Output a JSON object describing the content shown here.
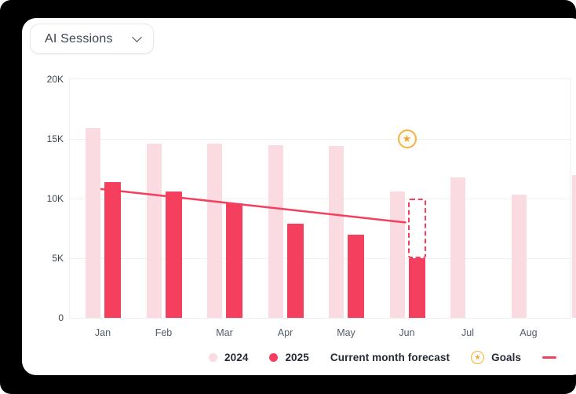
{
  "card": {
    "dropdown": {
      "label": "AI Sessions"
    }
  },
  "chart_data": {
    "type": "bar",
    "title": "AI Sessions",
    "categories": [
      "Jan",
      "Feb",
      "Mar",
      "Apr",
      "May",
      "Jun",
      "Jul",
      "Aug",
      ""
    ],
    "series": [
      {
        "name": "2024",
        "color": "#fadbe1",
        "values": [
          15900,
          14600,
          14600,
          14500,
          14400,
          10600,
          11800,
          10300,
          12000
        ]
      },
      {
        "name": "2025",
        "color": "#f43f5e",
        "values": [
          11400,
          10600,
          9600,
          7900,
          7000,
          5000,
          null,
          null,
          null
        ]
      }
    ],
    "forecast": {
      "category": "Jun",
      "from": 5000,
      "to": 10000,
      "style": "dashed",
      "color": "#f43f5e"
    },
    "trend_line": {
      "from_category": "Jan",
      "from_value": 10800,
      "to_category": "Jun",
      "to_value": 8000,
      "color": "#f43f5e"
    },
    "goal": {
      "category": "Jun",
      "value": 15000,
      "icon": "star",
      "color": "#f2a42e"
    },
    "y_ticks": [
      "0",
      "5K",
      "10K",
      "15K",
      "20K"
    ],
    "ylim": [
      0,
      20000
    ],
    "grid": "horizontal",
    "legend_position": "bottom"
  },
  "legend": {
    "items": [
      {
        "label": "2024",
        "swatch": "dot",
        "color": "#fadbe1"
      },
      {
        "label": "2025",
        "swatch": "dot",
        "color": "#f43f5e"
      },
      {
        "label": "Current month forecast",
        "swatch": "none",
        "color": ""
      },
      {
        "label": "Goals",
        "swatch": "star",
        "color": "#f2a42e"
      },
      {
        "label": "",
        "swatch": "line",
        "color": "#f43f5e"
      }
    ]
  },
  "colors": {
    "backdrop": "#000000",
    "card": "#ffffff",
    "bar_2024": "#fadbe1",
    "bar_2025": "#f43f5e",
    "goal_ring": "#f9b03c",
    "gridline": "#eff2f4"
  }
}
